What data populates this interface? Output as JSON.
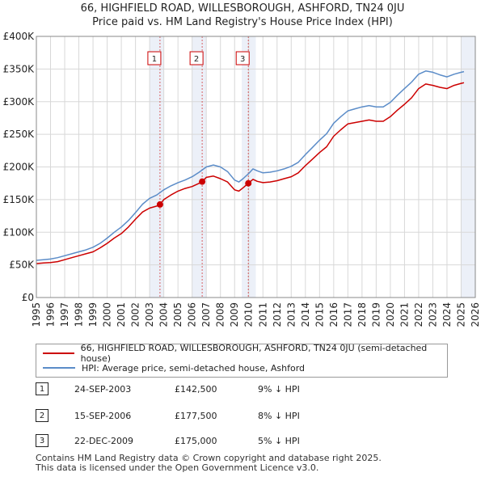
{
  "title_line1": "66, HIGHFIELD ROAD, WILLESBOROUGH, ASHFORD, TN24 0JU",
  "title_line2": "Price paid vs. HM Land Registry's House Price Index (HPI)",
  "chart_data": {
    "type": "line",
    "ylim": [
      0,
      400000
    ],
    "xlim": [
      1995,
      2026
    ],
    "y_ticks": [
      {
        "value": 0,
        "label": "£0"
      },
      {
        "value": 50000,
        "label": "£50K"
      },
      {
        "value": 100000,
        "label": "£100K"
      },
      {
        "value": 150000,
        "label": "£150K"
      },
      {
        "value": 200000,
        "label": "£200K"
      },
      {
        "value": 250000,
        "label": "£250K"
      },
      {
        "value": 300000,
        "label": "£300K"
      },
      {
        "value": 350000,
        "label": "£350K"
      },
      {
        "value": 400000,
        "label": "£400K"
      }
    ],
    "x_ticks": [
      "1995",
      "1996",
      "1997",
      "1998",
      "1999",
      "2000",
      "2001",
      "2002",
      "2003",
      "2004",
      "2005",
      "2006",
      "2007",
      "2008",
      "2009",
      "2010",
      "2011",
      "2012",
      "2013",
      "2014",
      "2015",
      "2016",
      "2017",
      "2018",
      "2019",
      "2020",
      "2021",
      "2022",
      "2023",
      "2024",
      "2025",
      "2026"
    ],
    "shaded_periods": [
      [
        2003.0,
        2004.0
      ],
      [
        2006.0,
        2007.0
      ],
      [
        2009.5,
        2010.5
      ],
      [
        2025.0,
        2026.0
      ]
    ],
    "series": [
      {
        "name": "66, HIGHFIELD ROAD, WILLESBOROUGH, ASHFORD, TN24 0JU (semi-detached house)",
        "color": "#cc0000",
        "x": [
          1995.0,
          1995.5,
          1996.0,
          1996.5,
          1997.0,
          1997.5,
          1998.0,
          1998.5,
          1999.0,
          1999.5,
          2000.0,
          2000.5,
          2001.0,
          2001.5,
          2002.0,
          2002.5,
          2003.0,
          2003.5,
          2003.73,
          2004.0,
          2004.5,
          2005.0,
          2005.5,
          2006.0,
          2006.5,
          2006.71,
          2007.0,
          2007.5,
          2008.0,
          2008.5,
          2009.0,
          2009.3,
          2009.6,
          2009.97,
          2010.3,
          2010.6,
          2011.0,
          2011.5,
          2012.0,
          2012.5,
          2013.0,
          2013.5,
          2014.0,
          2014.5,
          2015.0,
          2015.5,
          2016.0,
          2016.5,
          2017.0,
          2017.5,
          2018.0,
          2018.5,
          2019.0,
          2019.5,
          2020.0,
          2020.5,
          2021.0,
          2021.5,
          2022.0,
          2022.5,
          2023.0,
          2023.5,
          2024.0,
          2024.5,
          2025.0,
          2025.2
        ],
        "values": [
          52000,
          53000,
          53500,
          55000,
          58000,
          61000,
          64000,
          67000,
          70000,
          76000,
          83000,
          91000,
          98000,
          108000,
          120000,
          131000,
          137000,
          140000,
          142500,
          150000,
          157000,
          163000,
          167000,
          170000,
          175000,
          177500,
          184000,
          186000,
          182000,
          177000,
          165000,
          163000,
          168000,
          175000,
          181000,
          178000,
          176000,
          177000,
          179000,
          182000,
          185000,
          191000,
          202000,
          212000,
          222000,
          231000,
          247000,
          257000,
          266000,
          268000,
          270000,
          272000,
          270000,
          270000,
          277000,
          287000,
          296000,
          306000,
          320000,
          327000,
          325000,
          322000,
          320000,
          325000,
          328000,
          329000
        ]
      },
      {
        "name": "HPI: Average price, semi-detached house, Ashford",
        "color": "#5b8cc8",
        "x": [
          1995.0,
          1995.5,
          1996.0,
          1996.5,
          1997.0,
          1997.5,
          1998.0,
          1998.5,
          1999.0,
          1999.5,
          2000.0,
          2000.5,
          2001.0,
          2001.5,
          2002.0,
          2002.5,
          2003.0,
          2003.5,
          2004.0,
          2004.5,
          2005.0,
          2005.5,
          2006.0,
          2006.5,
          2007.0,
          2007.5,
          2008.0,
          2008.5,
          2009.0,
          2009.3,
          2009.6,
          2010.0,
          2010.3,
          2010.6,
          2011.0,
          2011.5,
          2012.0,
          2012.5,
          2013.0,
          2013.5,
          2014.0,
          2014.5,
          2015.0,
          2015.5,
          2016.0,
          2016.5,
          2017.0,
          2017.5,
          2018.0,
          2018.5,
          2019.0,
          2019.5,
          2020.0,
          2020.5,
          2021.0,
          2021.5,
          2022.0,
          2022.5,
          2023.0,
          2023.5,
          2024.0,
          2024.5,
          2025.0,
          2025.2
        ],
        "values": [
          57000,
          58000,
          59000,
          61000,
          64000,
          67000,
          70000,
          73000,
          77000,
          83000,
          91000,
          100000,
          108000,
          118000,
          130000,
          143000,
          152000,
          157000,
          165000,
          171000,
          176000,
          180000,
          185000,
          192000,
          200000,
          203000,
          200000,
          193000,
          180000,
          177000,
          182000,
          190000,
          197000,
          194000,
          191000,
          192000,
          194000,
          197000,
          201000,
          207000,
          219000,
          230000,
          241000,
          251000,
          267000,
          277000,
          286000,
          289000,
          292000,
          294000,
          292000,
          292000,
          299000,
          310000,
          320000,
          330000,
          342000,
          347000,
          345000,
          341000,
          338000,
          342000,
          345000,
          346000
        ]
      }
    ],
    "sales": [
      {
        "label": "1",
        "x": 2003.73,
        "price": 142500
      },
      {
        "label": "2",
        "x": 2006.71,
        "price": 177500
      },
      {
        "label": "3",
        "x": 2009.97,
        "price": 175000
      }
    ]
  },
  "legend": {
    "red_label": "66, HIGHFIELD ROAD, WILLESBOROUGH, ASHFORD, TN24 0JU (semi-detached house)",
    "blue_label": "HPI: Average price, semi-detached house, Ashford"
  },
  "transactions": [
    {
      "num": "1",
      "date": "24-SEP-2003",
      "price": "£142,500",
      "hpi": "9% ↓ HPI"
    },
    {
      "num": "2",
      "date": "15-SEP-2006",
      "price": "£177,500",
      "hpi": "8% ↓ HPI"
    },
    {
      "num": "3",
      "date": "22-DEC-2009",
      "price": "£175,000",
      "hpi": "5% ↓ HPI"
    }
  ],
  "footer": {
    "line1": "Contains HM Land Registry data © Crown copyright and database right 2025.",
    "line2": "This data is licensed under the Open Government Licence v3.0."
  }
}
